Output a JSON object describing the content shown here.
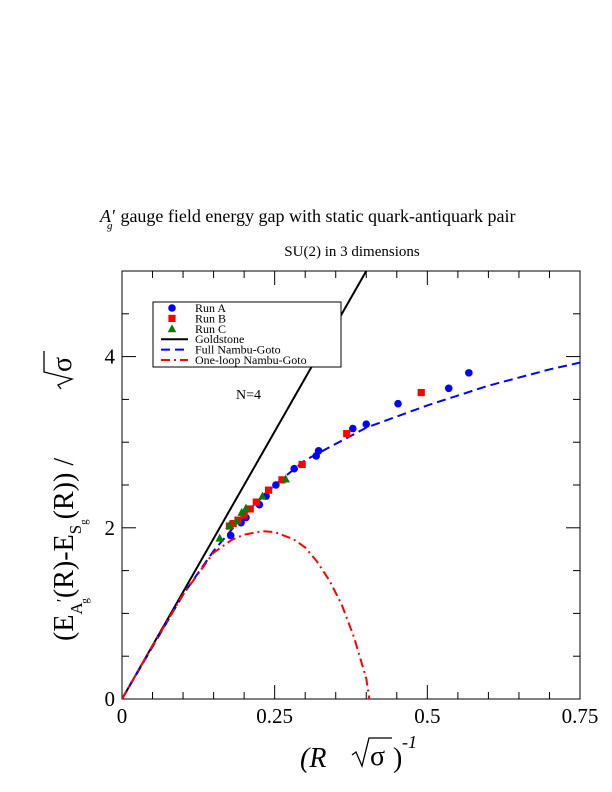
{
  "chart_data": {
    "type": "scatter",
    "title_main": "gauge field energy gap with static quark-antiquark pair",
    "title_symbol": "A",
    "title_symbol_prime": "′",
    "title_symbol_sub": "g",
    "subtitle": "SU(2) in 3 dimensions",
    "annotation": "N=4",
    "xlabel": {
      "open": "(R ",
      "sqrt_arg": "σ",
      "close": ")",
      "exponent": "-1"
    },
    "ylabel": {
      "open": "(E",
      "sub1": "A",
      "sub1_prime": "′",
      "sub1_sub": "g",
      "middle": "(R)-E",
      "sub2": "S",
      "sub2_sub": "g",
      "end": "(R)) / ",
      "sqrt_arg": "σ"
    },
    "xlim": [
      0,
      0.75
    ],
    "ylim": [
      0,
      5
    ],
    "x_ticks": [
      {
        "value": 0,
        "label": "0"
      },
      {
        "value": 0.25,
        "label": "0.25"
      },
      {
        "value": 0.5,
        "label": "0.5"
      },
      {
        "value": 0.75,
        "label": "0.75"
      }
    ],
    "y_ticks": [
      {
        "value": 0,
        "label": "0"
      },
      {
        "value": 2,
        "label": "2"
      },
      {
        "value": 4,
        "label": "4"
      }
    ],
    "legend_position": "top-left",
    "series": [
      {
        "name": "Run A",
        "kind": "points",
        "marker": "circle",
        "color": "#0000ff",
        "x": [
          0.178,
          0.195,
          0.203,
          0.225,
          0.236,
          0.252,
          0.282,
          0.318,
          0.322,
          0.378,
          0.4,
          0.452,
          0.535,
          0.568
        ],
        "y": [
          1.91,
          2.06,
          2.12,
          2.27,
          2.37,
          2.5,
          2.69,
          2.84,
          2.9,
          3.16,
          3.21,
          3.45,
          3.63,
          3.81
        ]
      },
      {
        "name": "Run B",
        "kind": "points",
        "marker": "square",
        "color": "#ff0000",
        "x": [
          0.176,
          0.182,
          0.19,
          0.2,
          0.21,
          0.22,
          0.24,
          0.262,
          0.295,
          0.368,
          0.49
        ],
        "y": [
          2.02,
          2.05,
          2.09,
          2.15,
          2.22,
          2.3,
          2.44,
          2.56,
          2.74,
          3.1,
          3.58
        ]
      },
      {
        "name": "Run C",
        "kind": "points",
        "marker": "triangle",
        "color": "#008000",
        "x": [
          0.16,
          0.176,
          0.188,
          0.196,
          0.203,
          0.23,
          0.268
        ],
        "y": [
          1.88,
          2.03,
          2.08,
          2.18,
          2.23,
          2.37,
          2.57
        ]
      },
      {
        "name": "Goldstone",
        "kind": "line",
        "style": "solid",
        "color": "#000000",
        "x": [
          0,
          0.4
        ],
        "y": [
          0,
          5.0
        ]
      },
      {
        "name": "Full Nambu-Goto",
        "kind": "line",
        "style": "dashed",
        "color": "#0000ff",
        "x": [
          0,
          0.1,
          0.15,
          0.2,
          0.25,
          0.3,
          0.4,
          0.5,
          0.6,
          0.7,
          0.75
        ],
        "y": [
          0,
          1.22,
          1.73,
          2.15,
          2.5,
          2.79,
          3.17,
          3.43,
          3.66,
          3.85,
          3.93
        ]
      },
      {
        "name": "One-loop Nambu-Goto",
        "kind": "line",
        "style": "dashdot",
        "color": "#ff0000",
        "x": [
          0,
          0.05,
          0.1,
          0.15,
          0.18,
          0.2,
          0.23,
          0.25,
          0.28,
          0.3,
          0.32,
          0.34,
          0.36,
          0.38,
          0.4,
          0.405
        ],
        "y": [
          0,
          0.62,
          1.22,
          1.71,
          1.86,
          1.92,
          1.96,
          1.95,
          1.87,
          1.77,
          1.6,
          1.38,
          1.1,
          0.72,
          0.24,
          0.0
        ]
      }
    ]
  }
}
